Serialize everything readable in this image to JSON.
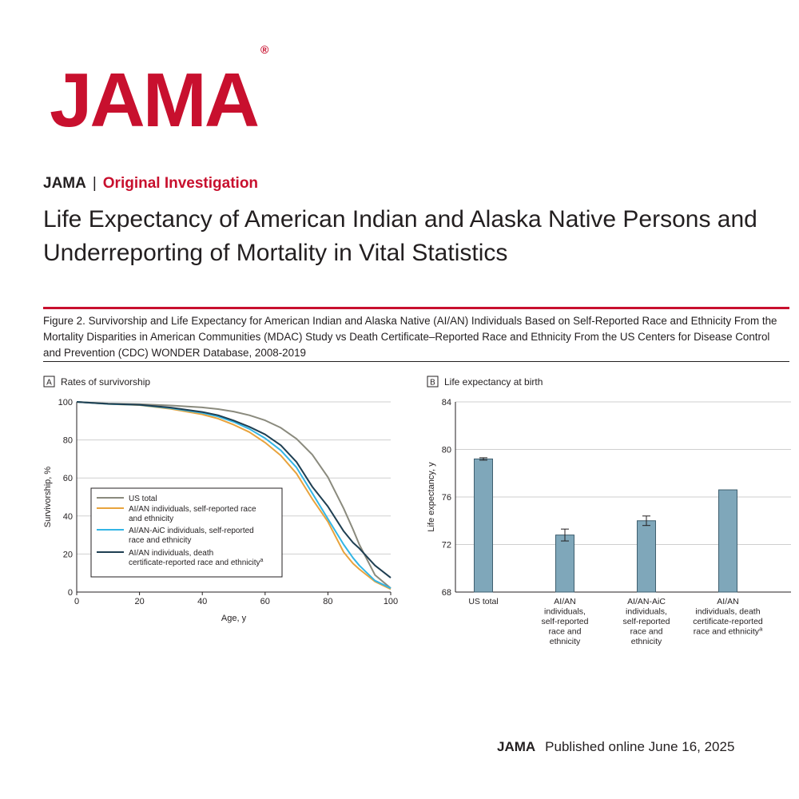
{
  "logo": {
    "text": "JAMA",
    "mark": "®"
  },
  "kicker": {
    "journal": "JAMA",
    "separator": "|",
    "section": "Original Investigation"
  },
  "article_title": "Life Expectancy of American Indian and Alaska Native Persons and Underreporting of Mortality in Vital Statistics",
  "figure_caption": "Figure 2. Survivorship and Life Expectancy for American Indian and Alaska Native (AI/AN) Individuals Based on Self-Reported Race and Ethnicity From the Mortality Disparities in American Communities (MDAC) Study vs Death Certificate–Reported Race and Ethnicity From the US Centers for Disease Control and Prevention (CDC) WONDER Database, 2008-2019",
  "colors": {
    "brand": "#c8102e",
    "grid": "#cfcfcf",
    "bar_fill": "#7fa7ba",
    "bar_stroke": "#3f5f6f"
  },
  "footer": {
    "journal": "JAMA",
    "published": "Published online June 16, 2025"
  },
  "chart_data": [
    {
      "panel": "A",
      "panel_title": "Rates of survivorship",
      "type": "line",
      "xlabel": "Age, y",
      "ylabel": "Survivorship, %",
      "xlim": [
        0,
        100
      ],
      "ylim": [
        0,
        100
      ],
      "xticks": [
        0,
        20,
        40,
        60,
        80,
        100
      ],
      "yticks": [
        0,
        20,
        40,
        60,
        80,
        100
      ],
      "grid": true,
      "legend_position": "lower-left",
      "x": [
        0,
        10,
        20,
        30,
        40,
        45,
        50,
        55,
        60,
        65,
        70,
        75,
        80,
        85,
        88,
        90,
        95,
        100
      ],
      "series": [
        {
          "name": "US total",
          "color": "#8a8a7d",
          "values": [
            100,
            99.1,
            98.8,
            98.1,
            97.1,
            96.2,
            94.9,
            93.0,
            90.3,
            86.4,
            80.6,
            72.3,
            60.4,
            44.0,
            33.0,
            25.0,
            9.0,
            2.0
          ]
        },
        {
          "name": "AI/AN individuals, self-reported race and ethnicity",
          "color": "#e8a33d",
          "values": [
            100,
            98.9,
            98.3,
            96.3,
            93.4,
            91.2,
            88.0,
            84.1,
            78.6,
            71.8,
            62.3,
            49.0,
            37.0,
            21.0,
            15.0,
            12.0,
            5.5,
            1.5
          ]
        },
        {
          "name": "AI/AN-AiC individuals, self-reported race and ethnicity",
          "color": "#33b5e5",
          "values": [
            100,
            98.9,
            98.4,
            96.7,
            94.2,
            92.3,
            89.5,
            85.8,
            80.9,
            74.5,
            65.5,
            52.0,
            38.5,
            25.0,
            18.0,
            14.0,
            6.0,
            2.0
          ]
        },
        {
          "name": "AI/AN individuals, death certificate-reported race and ethnicity",
          "color": "#1f3f52",
          "values": [
            100,
            99.0,
            98.5,
            97.0,
            94.7,
            93.0,
            90.2,
            86.9,
            82.9,
            77.2,
            68.4,
            55.4,
            45.0,
            32.0,
            26.0,
            23.0,
            14.0,
            7.5
          ]
        }
      ],
      "legend": [
        {
          "lines": [
            "US total"
          ],
          "sup": ""
        },
        {
          "lines": [
            "AI/AN individuals, self-reported race",
            "and ethnicity"
          ],
          "sup": ""
        },
        {
          "lines": [
            "AI/AN-AiC individuals, self-reported",
            "race and ethnicity"
          ],
          "sup": ""
        },
        {
          "lines": [
            "AI/AN individuals, death",
            "certificate-reported race and ethnicity"
          ],
          "sup": "a"
        }
      ]
    },
    {
      "panel": "B",
      "panel_title": "Life expectancy at birth",
      "type": "bar",
      "ylabel": "Life expectancy, y",
      "ylim": [
        68,
        84
      ],
      "yticks": [
        68,
        72,
        76,
        80,
        84
      ],
      "grid": true,
      "categories": [
        {
          "lines": [
            "US total"
          ],
          "sup": ""
        },
        {
          "lines": [
            "AI/AN",
            "individuals,",
            "self-reported",
            "race and",
            "ethnicity"
          ],
          "sup": ""
        },
        {
          "lines": [
            "AI/AN-AiC",
            "individuals,",
            "self-reported",
            "race and",
            "ethnicity"
          ],
          "sup": ""
        },
        {
          "lines": [
            "AI/AN",
            "individuals, death",
            "certificate-reported",
            "race and ethnicity"
          ],
          "sup": "a"
        }
      ],
      "values": [
        79.2,
        72.8,
        74.0,
        76.6
      ],
      "error_low": [
        79.1,
        72.3,
        73.6,
        null
      ],
      "error_high": [
        79.3,
        73.3,
        74.4,
        null
      ]
    }
  ]
}
